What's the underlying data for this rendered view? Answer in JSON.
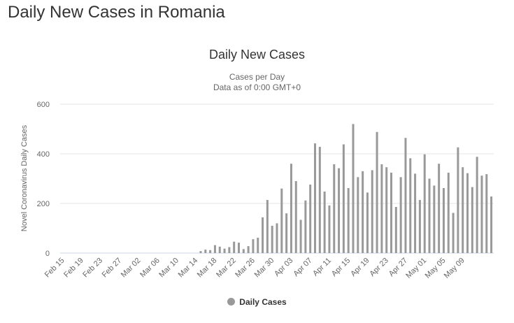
{
  "page": {
    "title": "Daily New Cases in Romania"
  },
  "colors": {
    "bar": "#999999",
    "grid": "#e6e6e6",
    "axis_text": "#666666",
    "title_text": "#333333"
  },
  "chart_data": {
    "type": "bar",
    "title": "Daily New Cases",
    "subtitle": [
      "Cases per Day",
      "Data as of 0:00 GMT+0"
    ],
    "ylabel": "Novel Coronavirus Daily Cases",
    "xlabel": "",
    "ylim": [
      0,
      600
    ],
    "yticks": [
      0,
      200,
      400,
      600
    ],
    "grid": true,
    "legend_position": "bottom",
    "xtick_labels": [
      "Feb 15",
      "Feb 19",
      "Feb 23",
      "Feb 27",
      "Mar 02",
      "Mar 06",
      "Mar 10",
      "Mar 14",
      "Mar 18",
      "Mar 22",
      "Mar 26",
      "Mar 30",
      "Apr 03",
      "Apr 07",
      "Apr 11",
      "Apr 15",
      "Apr 19",
      "Apr 23",
      "Apr 27",
      "May 01",
      "May 05",
      "May 09"
    ],
    "series": [
      {
        "name": "Daily Cases",
        "color": "#999999",
        "start_date": "Feb 15",
        "values": [
          0,
          0,
          0,
          0,
          0,
          0,
          0,
          0,
          0,
          0,
          0,
          0,
          0,
          0,
          0,
          0,
          0,
          0,
          0,
          0,
          0,
          0,
          0,
          0,
          0,
          0,
          0,
          0,
          0,
          8,
          14,
          12,
          32,
          26,
          18,
          24,
          46,
          42,
          16,
          28,
          56,
          62,
          144,
          214,
          110,
          120,
          260,
          160,
          360,
          290,
          134,
          212,
          276,
          442,
          428,
          248,
          192,
          358,
          342,
          438,
          262,
          520,
          306,
          330,
          244,
          334,
          488,
          358,
          346,
          324,
          186,
          306,
          464,
          382,
          320,
          214,
          398,
          300,
          272,
          360,
          262,
          324,
          162,
          426,
          346,
          322,
          266,
          388,
          312,
          318,
          228
        ]
      }
    ]
  }
}
